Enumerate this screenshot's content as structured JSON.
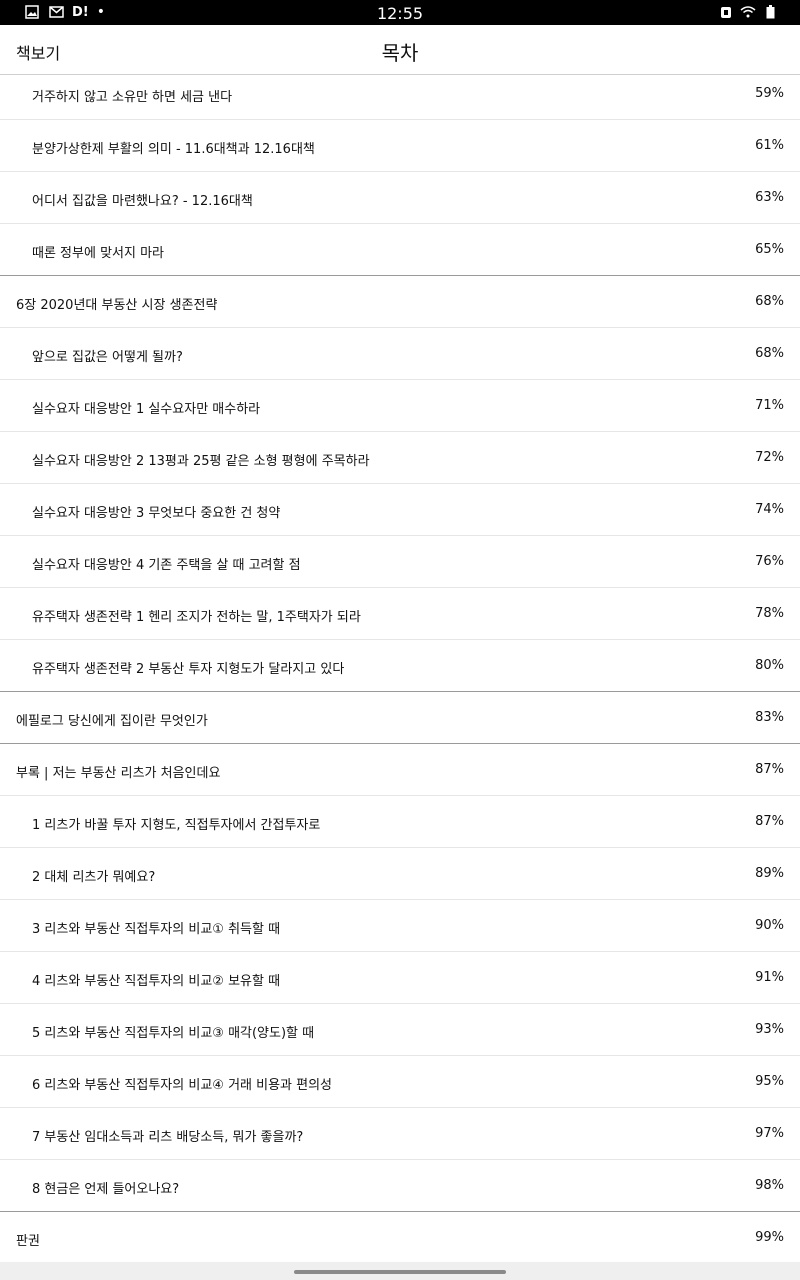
{
  "status_bar": {
    "time": "12:55",
    "left_icons": [
      "image-icon",
      "mail-icon"
    ],
    "left_text": "D!",
    "dot": "•",
    "right_icons": [
      "alarm-icon",
      "wifi-icon",
      "battery-icon"
    ]
  },
  "header": {
    "back_label": "책보기",
    "title": "목차"
  },
  "toc": [
    {
      "label": "거주하지 않고 소유만 하면 세금 낸다",
      "percent": "59%",
      "level": 2
    },
    {
      "label": "분양가상한제 부활의 의미 - 11.6대책과 12.16대책",
      "percent": "61%",
      "level": 2
    },
    {
      "label": "어디서 집값을 마련했나요? - 12.16대책",
      "percent": "63%",
      "level": 2
    },
    {
      "label": "때론 정부에 맞서지 마라",
      "percent": "65%",
      "level": 2
    },
    {
      "label": "6장 2020년대 부동산 시장 생존전략",
      "percent": "68%",
      "level": 1
    },
    {
      "label": "앞으로 집값은 어떻게 될까?",
      "percent": "68%",
      "level": 2
    },
    {
      "label": "실수요자 대응방안 1 실수요자만 매수하라",
      "percent": "71%",
      "level": 2
    },
    {
      "label": "실수요자 대응방안 2 13평과 25평 같은 소형 평형에 주목하라",
      "percent": "72%",
      "level": 2
    },
    {
      "label": "실수요자 대응방안 3 무엇보다 중요한 건 청약",
      "percent": "74%",
      "level": 2
    },
    {
      "label": "실수요자 대응방안 4 기존 주택을 살 때 고려할 점",
      "percent": "76%",
      "level": 2
    },
    {
      "label": "유주택자 생존전략 1 헨리 조지가 전하는 말, 1주택자가 되라",
      "percent": "78%",
      "level": 2
    },
    {
      "label": "유주택자 생존전략 2 부동산 투자 지형도가 달라지고 있다",
      "percent": "80%",
      "level": 2
    },
    {
      "label": "에필로그 당신에게 집이란 무엇인가",
      "percent": "83%",
      "level": 1
    },
    {
      "label": "부록 | 저는 부동산 리츠가 처음인데요",
      "percent": "87%",
      "level": 1
    },
    {
      "label": "1 리츠가 바꿀 투자 지형도, 직접투자에서 간접투자로",
      "percent": "87%",
      "level": 2
    },
    {
      "label": "2 대체 리츠가 뭐예요?",
      "percent": "89%",
      "level": 2
    },
    {
      "label": "3 리츠와 부동산 직접투자의 비교① 취득할 때",
      "percent": "90%",
      "level": 2
    },
    {
      "label": "4 리츠와 부동산 직접투자의 비교② 보유할 때",
      "percent": "91%",
      "level": 2
    },
    {
      "label": "5 리츠와 부동산 직접투자의 비교③ 매각(양도)할 때",
      "percent": "93%",
      "level": 2
    },
    {
      "label": "6 리츠와 부동산 직접투자의 비교④ 거래 비용과 편의성",
      "percent": "95%",
      "level": 2
    },
    {
      "label": "7 부동산 임대소득과 리츠 배당소득, 뭐가 좋을까?",
      "percent": "97%",
      "level": 2
    },
    {
      "label": "8 현금은 언제 들어오나요?",
      "percent": "98%",
      "level": 2
    },
    {
      "label": "판권",
      "percent": "99%",
      "level": 1
    }
  ]
}
